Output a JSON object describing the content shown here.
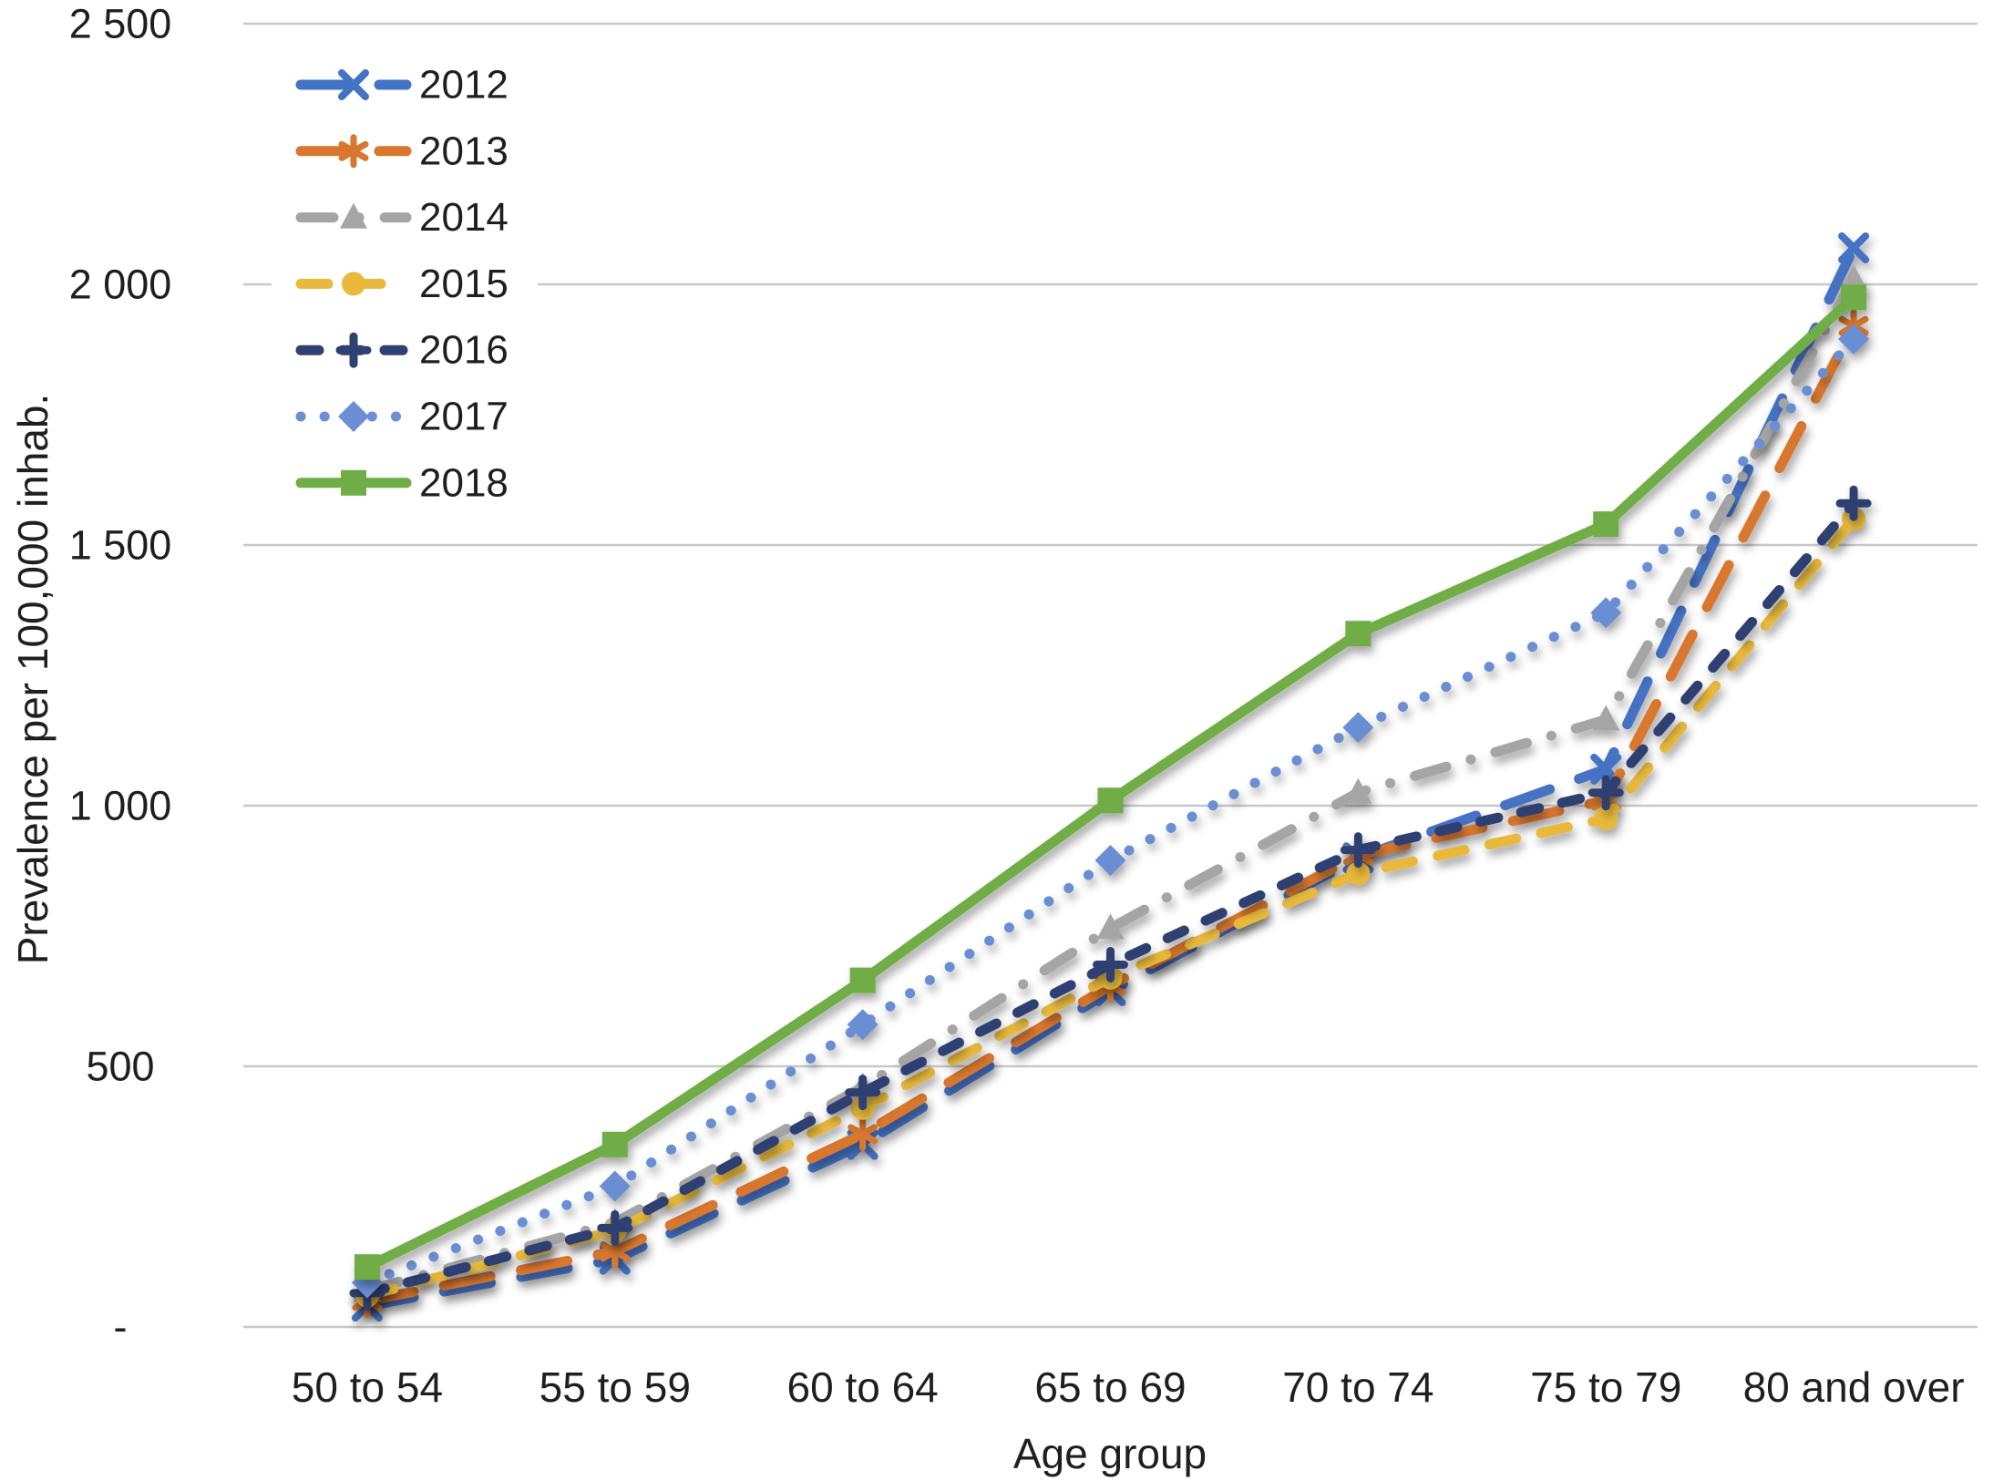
{
  "figure": {
    "background": "#ffffff",
    "gridline_color": "#C8C8C8",
    "text_color": "#1f1f1f"
  },
  "chart_data": {
    "type": "line",
    "title": "",
    "xlabel": "Age group",
    "ylabel": "Prevalence per 100,000  inhab.",
    "categories": [
      "50 to 54",
      "55 to 59",
      "60 to 64",
      "65 to 69",
      "70 to 74",
      "75 to 79",
      "80 and over"
    ],
    "ylim": [
      0,
      2500
    ],
    "grid": true,
    "legend_position": "upper-left-inside",
    "yticks": [
      {
        "value": 0,
        "label": "-"
      },
      {
        "value": 500,
        "label": "500"
      },
      {
        "value": 1000,
        "label": "1 000"
      },
      {
        "value": 1500,
        "label": "1 500"
      },
      {
        "value": 2000,
        "label": "2 000"
      },
      {
        "value": 2500,
        "label": "2 500"
      }
    ],
    "series": [
      {
        "name": "2012",
        "color": "#4472C4",
        "marker": "x",
        "line_style": "long-dash",
        "values": [
          40,
          130,
          350,
          645,
          900,
          1070,
          2070
        ]
      },
      {
        "name": "2013",
        "color": "#D9772F",
        "marker": "asterisk",
        "line_style": "long-dash",
        "values": [
          50,
          145,
          370,
          655,
          905,
          1010,
          1920
        ]
      },
      {
        "name": "2014",
        "color": "#A5A5A5",
        "marker": "triangle",
        "line_style": "dash-dot",
        "values": [
          70,
          200,
          460,
          765,
          1025,
          1165,
          2010
        ]
      },
      {
        "name": "2015",
        "color": "#E8B93B",
        "marker": "circle",
        "line_style": "dash",
        "values": [
          60,
          185,
          420,
          670,
          870,
          975,
          1550
        ]
      },
      {
        "name": "2016",
        "color": "#2E4172",
        "marker": "plus",
        "line_style": "short-dash",
        "values": [
          65,
          190,
          450,
          695,
          915,
          1025,
          1580
        ]
      },
      {
        "name": "2017",
        "color": "#6B8ED4",
        "marker": "diamond",
        "line_style": "dotted",
        "values": [
          85,
          270,
          580,
          895,
          1150,
          1370,
          1895
        ]
      },
      {
        "name": "2018",
        "color": "#70AD47",
        "marker": "square",
        "line_style": "solid",
        "values": [
          115,
          350,
          665,
          1010,
          1330,
          1540,
          1975
        ]
      }
    ]
  }
}
